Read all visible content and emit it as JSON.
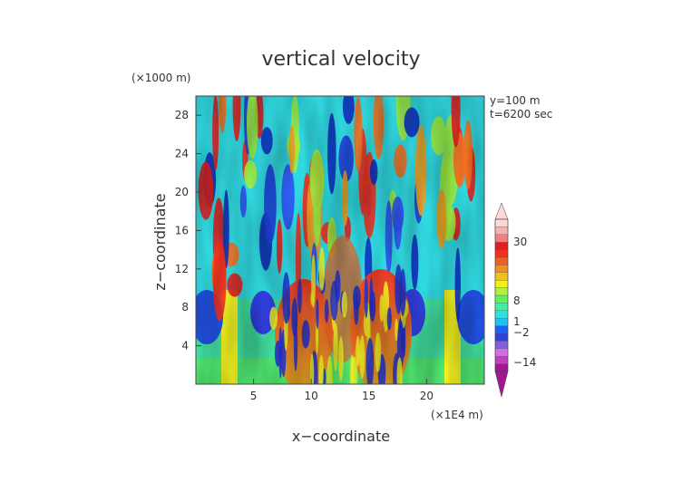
{
  "chart_data": {
    "type": "heatmap",
    "title": "vertical velocity",
    "xlabel": "x−coordinate",
    "ylabel": "z−coordinate",
    "x_unit": "(×1E4 m)",
    "y_unit": "(×1000 m)",
    "annotations": [
      "y=100  m",
      "t=6200  sec"
    ],
    "xlim": [
      0,
      25
    ],
    "ylim": [
      0,
      30
    ],
    "x_ticks": [
      5,
      10,
      15,
      20
    ],
    "y_ticks": [
      4,
      8,
      12,
      16,
      20,
      24,
      28
    ],
    "colorbar": {
      "tick_labels": [
        "30",
        "8",
        "1",
        "−2",
        "−14"
      ],
      "tick_values": [
        30,
        8,
        1,
        -2,
        -14
      ],
      "colors": [
        "#a01890",
        "#c040c0",
        "#d070e0",
        "#8060e0",
        "#3040e0",
        "#2060f0",
        "#20c0f0",
        "#30e0e0",
        "#40f0a0",
        "#60f060",
        "#b0f040",
        "#f0f020",
        "#f0c020",
        "#f09020",
        "#f06020",
        "#f03020",
        "#e02020",
        "#f08080",
        "#f8b0b0",
        "#fcd8d8"
      ]
    }
  }
}
